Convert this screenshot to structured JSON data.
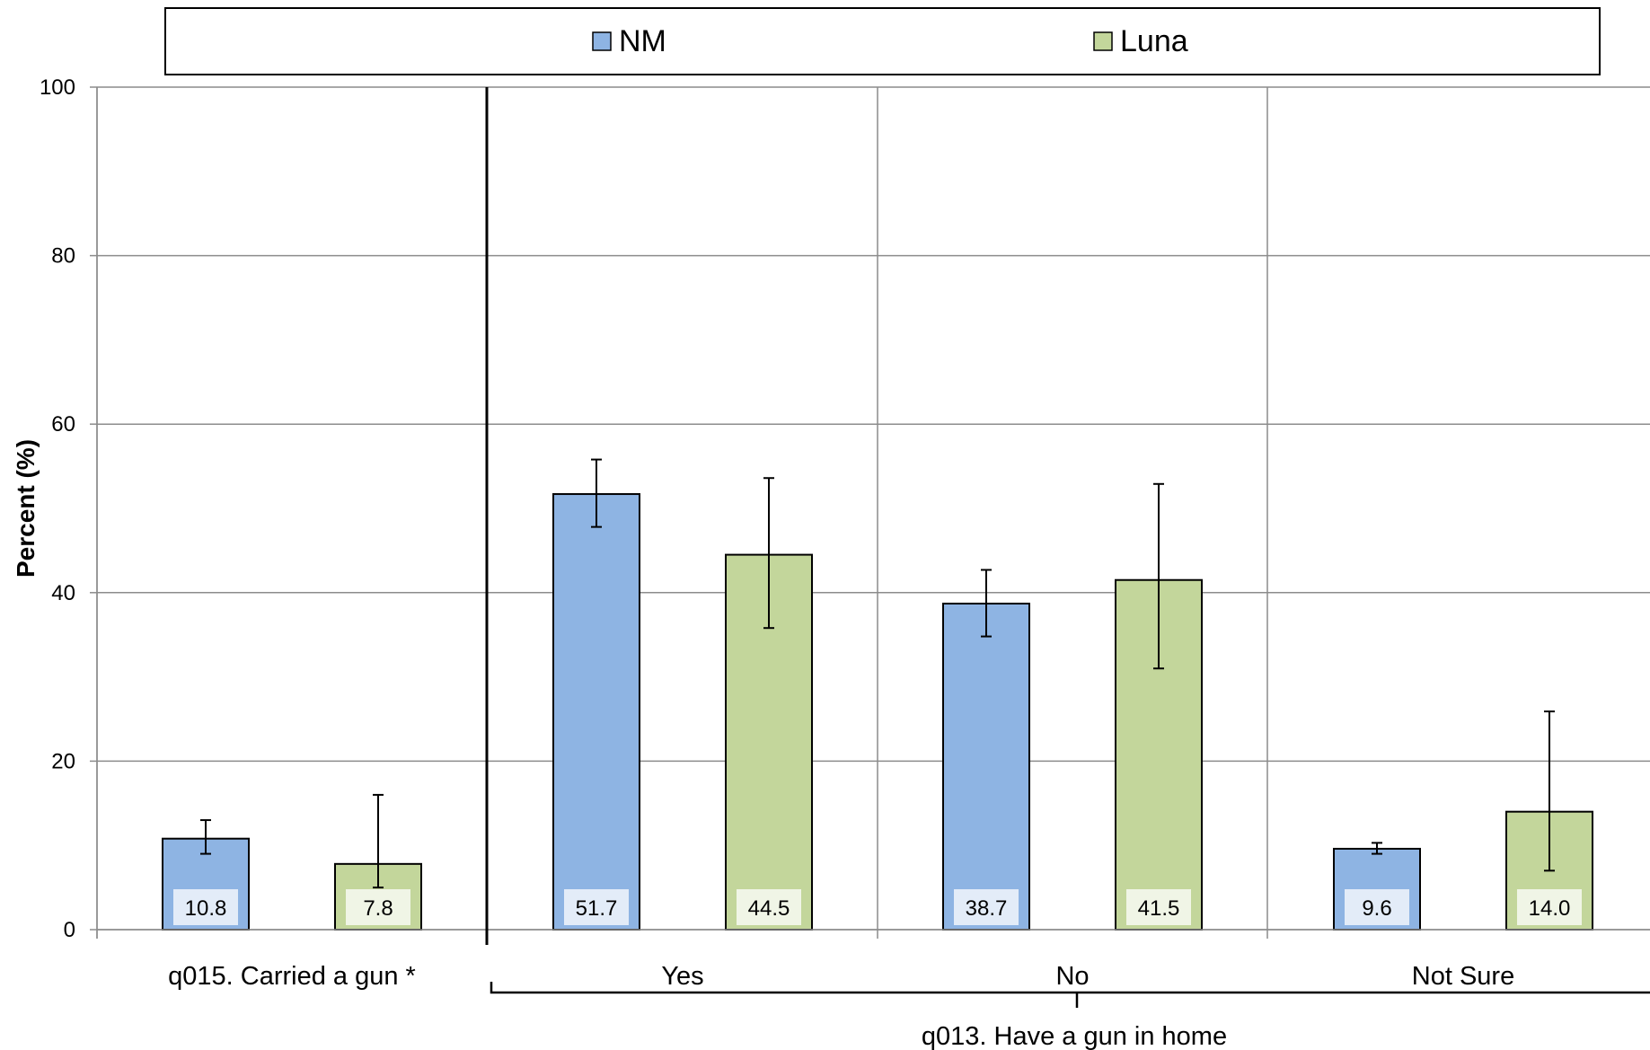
{
  "chart_data": {
    "type": "bar",
    "ylabel": "Percent (%)",
    "ylim": [
      0,
      100
    ],
    "yticks": [
      0,
      20,
      40,
      60,
      80,
      100
    ],
    "grid": true,
    "legend_position": "top",
    "series": [
      {
        "name": "NM",
        "color": "#8EB4E3"
      },
      {
        "name": "Luna",
        "color": "#C3D69B"
      }
    ],
    "groups": [
      {
        "label": "q015. Carried a gun *",
        "categories": [
          {
            "label": "q015. Carried a gun *",
            "values": [
              10.8,
              7.8
            ],
            "labels": [
              "10.8",
              "7.8"
            ],
            "error_low": [
              9.0,
              5.0
            ],
            "error_high": [
              13.0,
              16.0
            ]
          }
        ]
      },
      {
        "label": "q013. Have a gun in home",
        "categories": [
          {
            "label": "Yes",
            "values": [
              51.7,
              44.5
            ],
            "labels": [
              "51.7",
              "44.5"
            ],
            "error_low": [
              47.8,
              35.8
            ],
            "error_high": [
              55.8,
              53.6
            ]
          },
          {
            "label": "No",
            "values": [
              38.7,
              41.5
            ],
            "labels": [
              "38.7",
              "41.5"
            ],
            "error_low": [
              34.8,
              31.0
            ],
            "error_high": [
              42.7,
              52.9
            ]
          },
          {
            "label": "Not Sure",
            "values": [
              9.6,
              14.0
            ],
            "labels": [
              "9.6",
              "14.0"
            ],
            "error_low": [
              9.0,
              7.0
            ],
            "error_high": [
              10.3,
              25.9
            ]
          }
        ]
      }
    ]
  }
}
